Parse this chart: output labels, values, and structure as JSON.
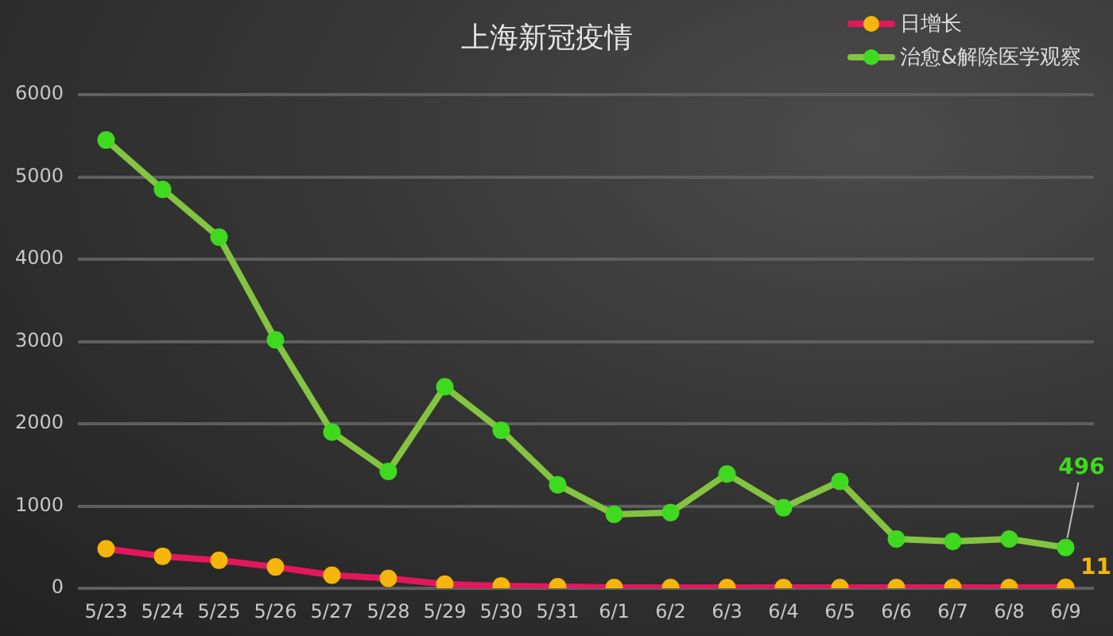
{
  "chart_data": {
    "type": "line",
    "title": "上海新冠疫情",
    "categories": [
      "5/23",
      "5/24",
      "5/25",
      "5/26",
      "5/27",
      "5/28",
      "5/29",
      "5/30",
      "5/31",
      "6/1",
      "6/2",
      "6/3",
      "6/4",
      "6/5",
      "6/6",
      "6/7",
      "6/8",
      "6/9"
    ],
    "series": [
      {
        "name": "日增长",
        "color": "#e3175d",
        "colors": [
          "#f5b50a",
          "#f5b50a",
          "#f5b50a",
          "#f5b50a",
          "#f5b50a",
          "#f5b50a",
          "#f5b50a",
          "#f5b50a",
          "#f5b50a",
          "#f5b50a",
          "#f5b50a",
          "#f5b50a",
          "#f5b50a",
          "#f5b50a",
          "#f5b50a",
          "#f5b50a",
          "#f5b50a",
          "#f5b50a"
        ],
        "values": [
          480,
          390,
          340,
          260,
          160,
          120,
          50,
          30,
          20,
          10,
          10,
          10,
          10,
          10,
          10,
          10,
          10,
          11
        ],
        "value_labels": [
          null,
          null,
          null,
          null,
          null,
          null,
          null,
          null,
          null,
          null,
          null,
          null,
          null,
          null,
          null,
          null,
          null,
          "11"
        ]
      },
      {
        "name": "治愈&解除医学观察",
        "color": "#84c441",
        "colors": [
          "#3fd920",
          "#3fd920",
          "#3fd920",
          "#3fd920",
          "#3fd920",
          "#3fd920",
          "#3fd920",
          "#3fd920",
          "#3fd920",
          "#3fd920",
          "#3fd920",
          "#3fd920",
          "#3fd920",
          "#3fd920",
          "#3fd920",
          "#3fd920",
          "#3fd920",
          "#3fd920"
        ],
        "values": [
          5450,
          4850,
          4270,
          3020,
          1900,
          1420,
          2450,
          1920,
          1260,
          900,
          920,
          1390,
          980,
          1300,
          600,
          570,
          600,
          496
        ],
        "value_labels": [
          null,
          null,
          null,
          null,
          null,
          null,
          null,
          null,
          null,
          null,
          null,
          null,
          null,
          null,
          null,
          null,
          null,
          "496"
        ]
      }
    ],
    "ylim": [
      0,
      6000
    ],
    "yticks": [
      0,
      1000,
      2000,
      3000,
      4000,
      5000,
      6000
    ],
    "grid": "y",
    "legend": "top right",
    "marker": "circle",
    "line_style": "solid"
  }
}
